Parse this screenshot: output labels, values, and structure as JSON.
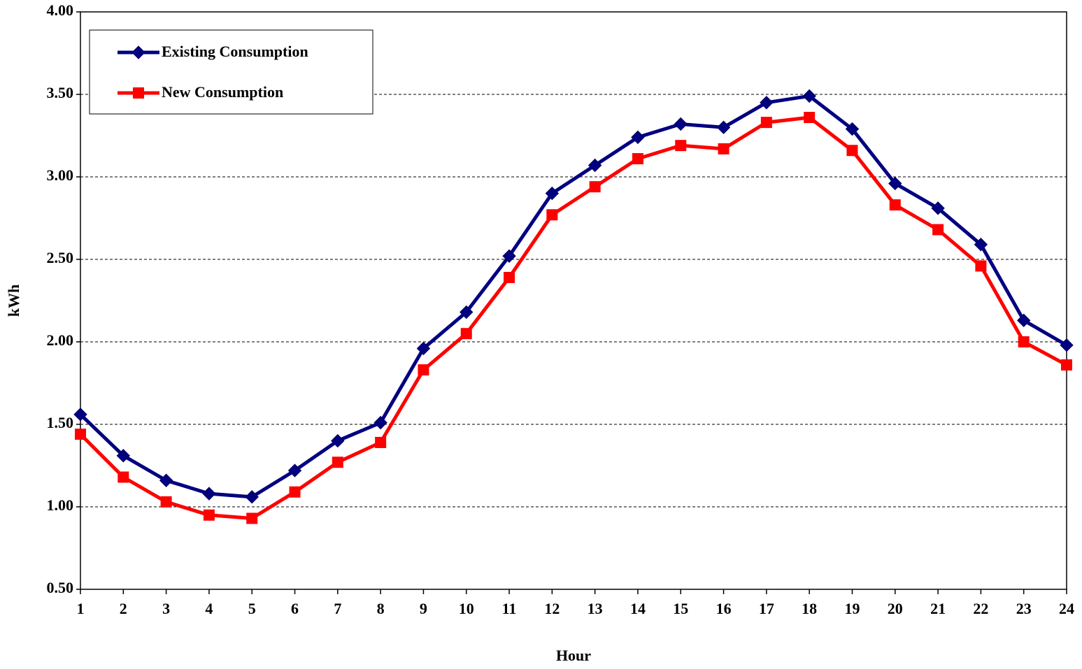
{
  "chart_data": {
    "type": "line",
    "x_label": "Hour",
    "y_label": "kWh",
    "x": [
      1,
      2,
      3,
      4,
      5,
      6,
      7,
      8,
      9,
      10,
      11,
      12,
      13,
      14,
      15,
      16,
      17,
      18,
      19,
      20,
      21,
      22,
      23,
      24
    ],
    "xlim": [
      1,
      24
    ],
    "xticks": [
      1,
      2,
      3,
      4,
      5,
      6,
      7,
      8,
      9,
      10,
      11,
      12,
      13,
      14,
      15,
      16,
      17,
      18,
      19,
      20,
      21,
      22,
      23,
      24
    ],
    "ylim": [
      0.5,
      4.0
    ],
    "yticks": [
      {
        "value": 0.5,
        "label": "0.50"
      },
      {
        "value": 1.0,
        "label": "1.00"
      },
      {
        "value": 1.5,
        "label": "1.50"
      },
      {
        "value": 2.0,
        "label": "2.00"
      },
      {
        "value": 2.5,
        "label": "2.50"
      },
      {
        "value": 3.0,
        "label": "3.00"
      },
      {
        "value": 3.5,
        "label": "3.50"
      },
      {
        "value": 4.0,
        "label": "4.00"
      }
    ],
    "grid": true,
    "legend": "upper left",
    "series": [
      {
        "name": "Existing Consumption",
        "color": "#000080",
        "marker": "diamond",
        "values": [
          1.56,
          1.31,
          1.16,
          1.08,
          1.06,
          1.22,
          1.4,
          1.51,
          1.96,
          2.18,
          2.52,
          2.9,
          3.07,
          3.24,
          3.32,
          3.3,
          3.45,
          3.49,
          3.29,
          2.96,
          2.81,
          2.59,
          2.13,
          1.98
        ]
      },
      {
        "name": "New Consumption",
        "color": "#ff0000",
        "marker": "square",
        "values": [
          1.44,
          1.18,
          1.03,
          0.95,
          0.93,
          1.09,
          1.27,
          1.39,
          1.83,
          2.05,
          2.39,
          2.77,
          2.94,
          3.11,
          3.19,
          3.17,
          3.33,
          3.36,
          3.16,
          2.83,
          2.68,
          2.46,
          2.0,
          1.86
        ]
      }
    ]
  }
}
